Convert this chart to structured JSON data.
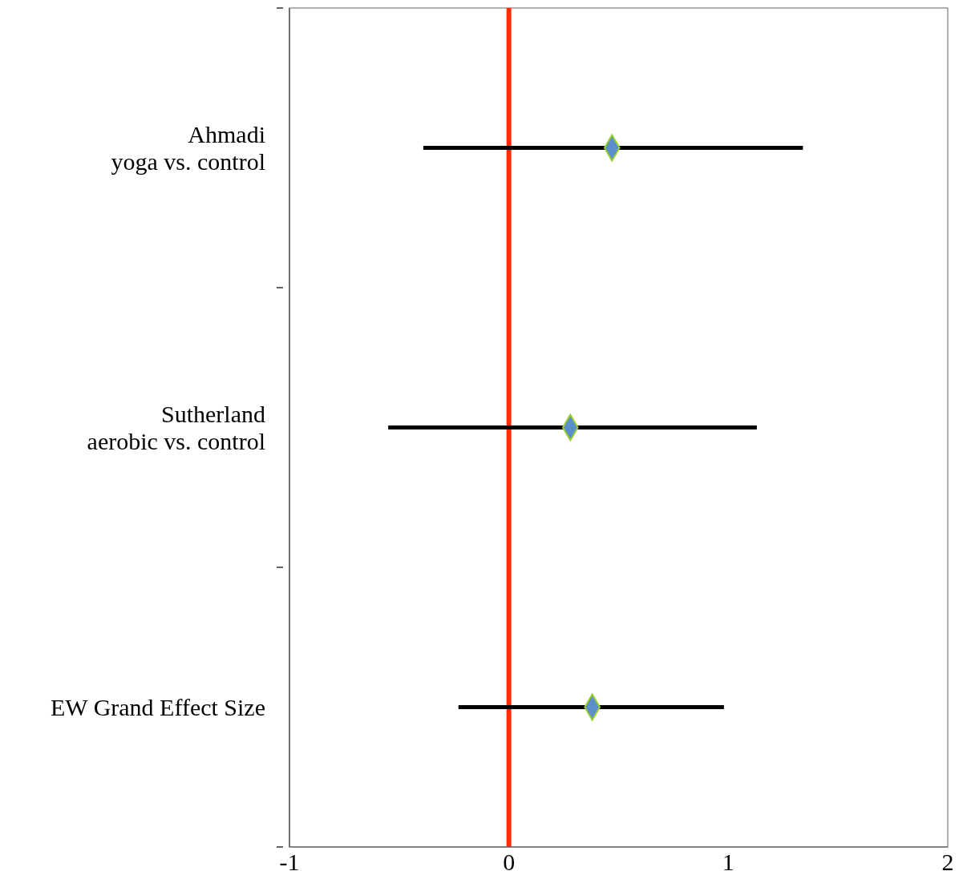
{
  "chart_data": {
    "type": "scatter",
    "orientation": "horizontal",
    "categories": [
      "Ahmadi\nyoga vs. control",
      "Sutherland\naerobic vs. control",
      "EW Grand Effect Size"
    ],
    "values": [
      0.47,
      0.28,
      0.38
    ],
    "errors": [
      [
        -0.39,
        1.34
      ],
      [
        -0.55,
        1.13
      ],
      [
        -0.23,
        0.98
      ]
    ],
    "color": "#5b8fc9",
    "marker": "diamond",
    "xlim": [
      -1,
      2
    ],
    "xticks": [
      -1,
      0,
      1,
      2
    ],
    "ref_lines": [
      {
        "axis": "x",
        "value": 0,
        "color": "#ff2a00"
      }
    ]
  }
}
